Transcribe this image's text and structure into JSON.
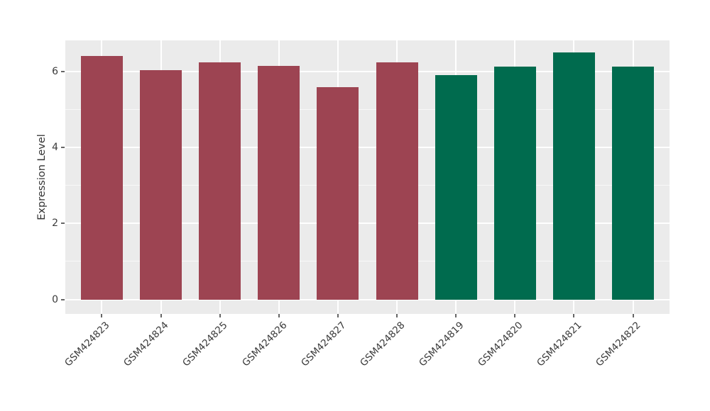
{
  "chart_data": {
    "type": "bar",
    "title": "",
    "xlabel": "",
    "ylabel": "Expression Level",
    "categories": [
      "GSM424823",
      "GSM424824",
      "GSM424825",
      "GSM424826",
      "GSM424827",
      "GSM424828",
      "GSM424819",
      "GSM424820",
      "GSM424821",
      "GSM424822"
    ],
    "values": [
      6.41,
      6.03,
      6.24,
      6.15,
      5.58,
      6.24,
      5.91,
      6.13,
      6.5,
      6.13
    ],
    "groups": [
      0,
      0,
      0,
      0,
      0,
      0,
      1,
      1,
      1,
      1
    ],
    "group_colors": [
      "#9D4452",
      "#006B4E"
    ],
    "ylim": [
      -0.38,
      6.82
    ],
    "yticks_major": [
      0,
      2,
      4,
      6
    ],
    "yticks_minor": [
      1,
      3,
      5
    ],
    "grid": true,
    "gridline_color": "#FFFFFF",
    "plot_background": "#EBEBEB",
    "figure_background": "#FFFFFF",
    "legend": "none",
    "x_label_rotation_deg": 45
  }
}
